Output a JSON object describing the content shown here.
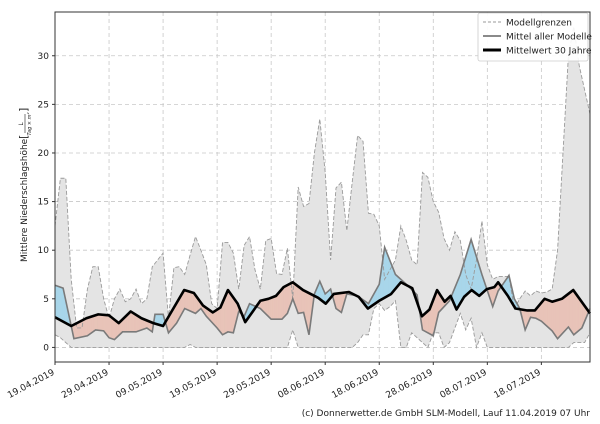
{
  "chart_data": {
    "type": "area",
    "title": "",
    "xlabel": "",
    "ylabel": "Mittlere Niederschlagshöhe",
    "ylabel_unit_num": "L",
    "ylabel_unit_den": "Tag × m²",
    "x_unit": "days since 19.04.2019",
    "xlim": [
      0,
      99
    ],
    "ylim": [
      -1.5,
      34.5
    ],
    "yticks": [
      0,
      5,
      10,
      15,
      20,
      25,
      30
    ],
    "xticks": [
      0,
      10,
      20,
      30,
      40,
      50,
      60,
      70,
      80,
      90
    ],
    "xtick_labels": [
      "19.04.2019",
      "29.04.2019",
      "09.05.2019",
      "19.05.2019",
      "29.05.2019",
      "08.06.2019",
      "18.06.2019",
      "28.06.2019",
      "08.07.2019",
      "18.07.2019"
    ],
    "grid": true,
    "legend_position": "top-right",
    "legend": [
      "Modellgrenzen",
      "Mittel aller Modelle",
      "Mittelwert 30 Jahre"
    ],
    "colors": {
      "band": "#e4e4e4",
      "band_edge": "#9a9a9a",
      "model": "#7a7a7a",
      "mean30": "#000000",
      "above": "#a8d6ea",
      "below": "#e8c3b8"
    },
    "series": [
      {
        "name": "Modellgrenzen max",
        "points": [
          [
            0,
            12.5
          ],
          [
            1,
            17.4
          ],
          [
            2,
            17.4
          ],
          [
            3,
            7
          ],
          [
            4,
            2
          ],
          [
            5,
            2
          ],
          [
            6,
            6
          ],
          [
            7,
            8.3
          ],
          [
            8,
            8.3
          ],
          [
            9,
            5
          ],
          [
            10,
            3
          ],
          [
            11,
            5
          ],
          [
            12,
            6
          ],
          [
            13,
            4.7
          ],
          [
            14,
            5
          ],
          [
            15,
            6
          ],
          [
            16,
            4.5
          ],
          [
            17,
            5
          ],
          [
            18,
            8.3
          ],
          [
            19,
            9
          ],
          [
            20,
            9.7
          ],
          [
            21,
            3
          ],
          [
            22,
            8.2
          ],
          [
            23,
            8.3
          ],
          [
            24,
            7.5
          ],
          [
            25,
            9.5
          ],
          [
            26,
            11.4
          ],
          [
            27,
            10
          ],
          [
            28,
            8.5
          ],
          [
            29,
            4.5
          ],
          [
            30,
            4
          ],
          [
            31,
            10.8
          ],
          [
            32,
            10.8
          ],
          [
            33,
            9.7
          ],
          [
            34,
            6
          ],
          [
            35,
            10.5
          ],
          [
            36,
            11.4
          ],
          [
            37,
            8
          ],
          [
            38,
            6
          ],
          [
            39,
            11
          ],
          [
            40,
            11.2
          ],
          [
            41,
            7.6
          ],
          [
            42,
            7.5
          ],
          [
            43,
            10.2
          ],
          [
            44,
            5
          ],
          [
            45,
            16.5
          ],
          [
            46,
            14.5
          ],
          [
            47,
            14.8
          ],
          [
            48,
            20
          ],
          [
            49,
            23.5
          ],
          [
            50,
            18
          ],
          [
            51,
            9
          ],
          [
            52,
            16.4
          ],
          [
            53,
            17
          ],
          [
            54,
            12
          ],
          [
            55,
            17
          ],
          [
            56,
            21.8
          ],
          [
            57,
            21.2
          ],
          [
            58,
            13.8
          ],
          [
            59,
            13.7
          ],
          [
            60,
            12.5
          ],
          [
            61,
            7
          ],
          [
            62,
            8
          ],
          [
            63,
            9
          ],
          [
            64,
            12.5
          ],
          [
            65,
            11
          ],
          [
            66,
            9
          ],
          [
            67,
            8.5
          ],
          [
            68,
            18
          ],
          [
            69,
            17.5
          ],
          [
            70,
            15
          ],
          [
            71,
            13.9
          ],
          [
            72,
            11.2
          ],
          [
            73,
            10
          ],
          [
            74,
            11.9
          ],
          [
            75,
            11
          ],
          [
            76,
            7.5
          ],
          [
            77,
            6
          ],
          [
            78,
            9
          ],
          [
            79,
            13
          ],
          [
            80,
            8.5
          ],
          [
            81,
            7
          ],
          [
            82,
            7.3
          ],
          [
            83,
            7.3
          ],
          [
            84,
            7.3
          ],
          [
            85,
            4
          ],
          [
            86,
            5
          ],
          [
            87,
            5.8
          ],
          [
            88,
            5.3
          ],
          [
            89,
            5.8
          ],
          [
            90,
            5.6
          ],
          [
            91,
            5.7
          ],
          [
            92,
            6
          ],
          [
            93,
            10
          ],
          [
            94,
            20
          ],
          [
            95,
            30
          ],
          [
            96,
            33
          ],
          [
            97,
            29
          ],
          [
            99,
            24
          ]
        ]
      },
      {
        "name": "Modellgrenzen min",
        "points": [
          [
            0,
            1.3
          ],
          [
            1,
            1
          ],
          [
            3,
            0
          ],
          [
            24,
            0
          ],
          [
            25,
            0.3
          ],
          [
            26,
            0
          ],
          [
            43,
            0
          ],
          [
            44,
            1.8
          ],
          [
            45,
            0
          ],
          [
            55,
            0
          ],
          [
            56,
            0.5
          ],
          [
            57,
            1.3
          ],
          [
            58,
            1.3
          ],
          [
            59,
            4
          ],
          [
            60,
            4.5
          ],
          [
            61,
            3.8
          ],
          [
            62,
            4.2
          ],
          [
            63,
            4.8
          ],
          [
            64,
            0
          ],
          [
            65,
            0
          ],
          [
            66,
            1.5
          ],
          [
            67,
            1
          ],
          [
            68,
            0.5
          ],
          [
            69,
            0
          ],
          [
            70,
            1.5
          ],
          [
            71,
            1.5
          ],
          [
            72,
            0
          ],
          [
            73,
            0.5
          ],
          [
            74,
            2
          ],
          [
            75,
            3.5
          ],
          [
            76,
            1.8
          ],
          [
            77,
            3
          ],
          [
            78,
            0
          ],
          [
            79,
            1.5
          ],
          [
            80,
            0
          ],
          [
            95,
            0
          ],
          [
            96,
            0.5
          ],
          [
            98,
            0.5
          ],
          [
            99,
            1.5
          ]
        ]
      },
      {
        "name": "Mittel aller Modelle",
        "points": [
          [
            0,
            6.4
          ],
          [
            1.5,
            6.1
          ],
          [
            3.5,
            0.9
          ],
          [
            6,
            1.2
          ],
          [
            7.5,
            1.8
          ],
          [
            9,
            1.7
          ],
          [
            10,
            1.0
          ],
          [
            11,
            0.8
          ],
          [
            12.5,
            1.6
          ],
          [
            15,
            1.6
          ],
          [
            17,
            2.0
          ],
          [
            18,
            1.6
          ],
          [
            18.5,
            3.4
          ],
          [
            20,
            3.4
          ],
          [
            21,
            1.5
          ],
          [
            22.5,
            2.5
          ],
          [
            24,
            4.0
          ],
          [
            26,
            3.5
          ],
          [
            27,
            4.0
          ],
          [
            28,
            3.2
          ],
          [
            30,
            2.0
          ],
          [
            31,
            1.3
          ],
          [
            32,
            1.6
          ],
          [
            33,
            1.5
          ],
          [
            34,
            3.7
          ],
          [
            35,
            3.2
          ],
          [
            36,
            4.5
          ],
          [
            38,
            4.0
          ],
          [
            40,
            2.9
          ],
          [
            42,
            2.9
          ],
          [
            43,
            3.5
          ],
          [
            44,
            5.0
          ],
          [
            45,
            3.5
          ],
          [
            46,
            3.6
          ],
          [
            47,
            1.3
          ],
          [
            48,
            5.5
          ],
          [
            49,
            6.8
          ],
          [
            50,
            5.5
          ],
          [
            51,
            6.0
          ],
          [
            52,
            4.0
          ],
          [
            53,
            3.6
          ],
          [
            54,
            5.5
          ],
          [
            56,
            5.3
          ],
          [
            58,
            4.5
          ],
          [
            60,
            6.5
          ],
          [
            61,
            10.3
          ],
          [
            63,
            7.5
          ],
          [
            65,
            6.5
          ],
          [
            67,
            5.4
          ],
          [
            68,
            1.8
          ],
          [
            70,
            1.2
          ],
          [
            71,
            3.6
          ],
          [
            73,
            4.8
          ],
          [
            75,
            7.5
          ],
          [
            77,
            11.1
          ],
          [
            79,
            7.5
          ],
          [
            81,
            4.2
          ],
          [
            82,
            5.8
          ],
          [
            84,
            7.4
          ],
          [
            85,
            5.0
          ],
          [
            86,
            4.0
          ],
          [
            87,
            1.8
          ],
          [
            88,
            3.1
          ],
          [
            89,
            3.0
          ],
          [
            90,
            2.7
          ],
          [
            92,
            1.7
          ],
          [
            93,
            0.9
          ],
          [
            95,
            2.1
          ],
          [
            96,
            1.3
          ],
          [
            97.5,
            2.0
          ],
          [
            99,
            4.0
          ]
        ]
      },
      {
        "name": "Mittelwert 30 Jahre",
        "points": [
          [
            0,
            3.1
          ],
          [
            3,
            2.2
          ],
          [
            5.8,
            3.0
          ],
          [
            8,
            3.4
          ],
          [
            10,
            3.3
          ],
          [
            11.8,
            2.5
          ],
          [
            14,
            3.7
          ],
          [
            16,
            3.0
          ],
          [
            18.2,
            2.5
          ],
          [
            20,
            2.2
          ],
          [
            23.9,
            5.9
          ],
          [
            25.7,
            5.6
          ],
          [
            27.4,
            4.3
          ],
          [
            29.2,
            3.6
          ],
          [
            30.6,
            4.1
          ],
          [
            32,
            5.9
          ],
          [
            33.8,
            4.5
          ],
          [
            35.2,
            2.6
          ],
          [
            38,
            4.8
          ],
          [
            39.5,
            5.0
          ],
          [
            40.9,
            5.3
          ],
          [
            42.3,
            6.2
          ],
          [
            44,
            6.7
          ],
          [
            45.9,
            5.9
          ],
          [
            48.7,
            5.1
          ],
          [
            50.1,
            4.5
          ],
          [
            51.6,
            5.5
          ],
          [
            54.4,
            5.7
          ],
          [
            56.2,
            5.2
          ],
          [
            57.9,
            4.0
          ],
          [
            60,
            4.8
          ],
          [
            62.2,
            5.5
          ],
          [
            64,
            6.7
          ],
          [
            66.1,
            6.1
          ],
          [
            67.9,
            3.2
          ],
          [
            69.3,
            3.9
          ],
          [
            70.7,
            5.9
          ],
          [
            72.1,
            4.7
          ],
          [
            73.2,
            5.3
          ],
          [
            74.3,
            3.9
          ],
          [
            75.7,
            5.2
          ],
          [
            77.1,
            5.9
          ],
          [
            78.5,
            5.3
          ],
          [
            79.9,
            6.0
          ],
          [
            81.3,
            6.2
          ],
          [
            82,
            6.7
          ],
          [
            83.8,
            5.3
          ],
          [
            85.2,
            4.0
          ],
          [
            87.4,
            3.8
          ],
          [
            88.8,
            3.8
          ],
          [
            90.6,
            5.0
          ],
          [
            92,
            4.7
          ],
          [
            93.8,
            5.0
          ],
          [
            95.9,
            5.9
          ],
          [
            99,
            3.5
          ]
        ]
      }
    ]
  },
  "footer": "(c) Donnerwetter.de GmbH SLM-Modell, Lauf 11.04.2019 07 Uhr"
}
